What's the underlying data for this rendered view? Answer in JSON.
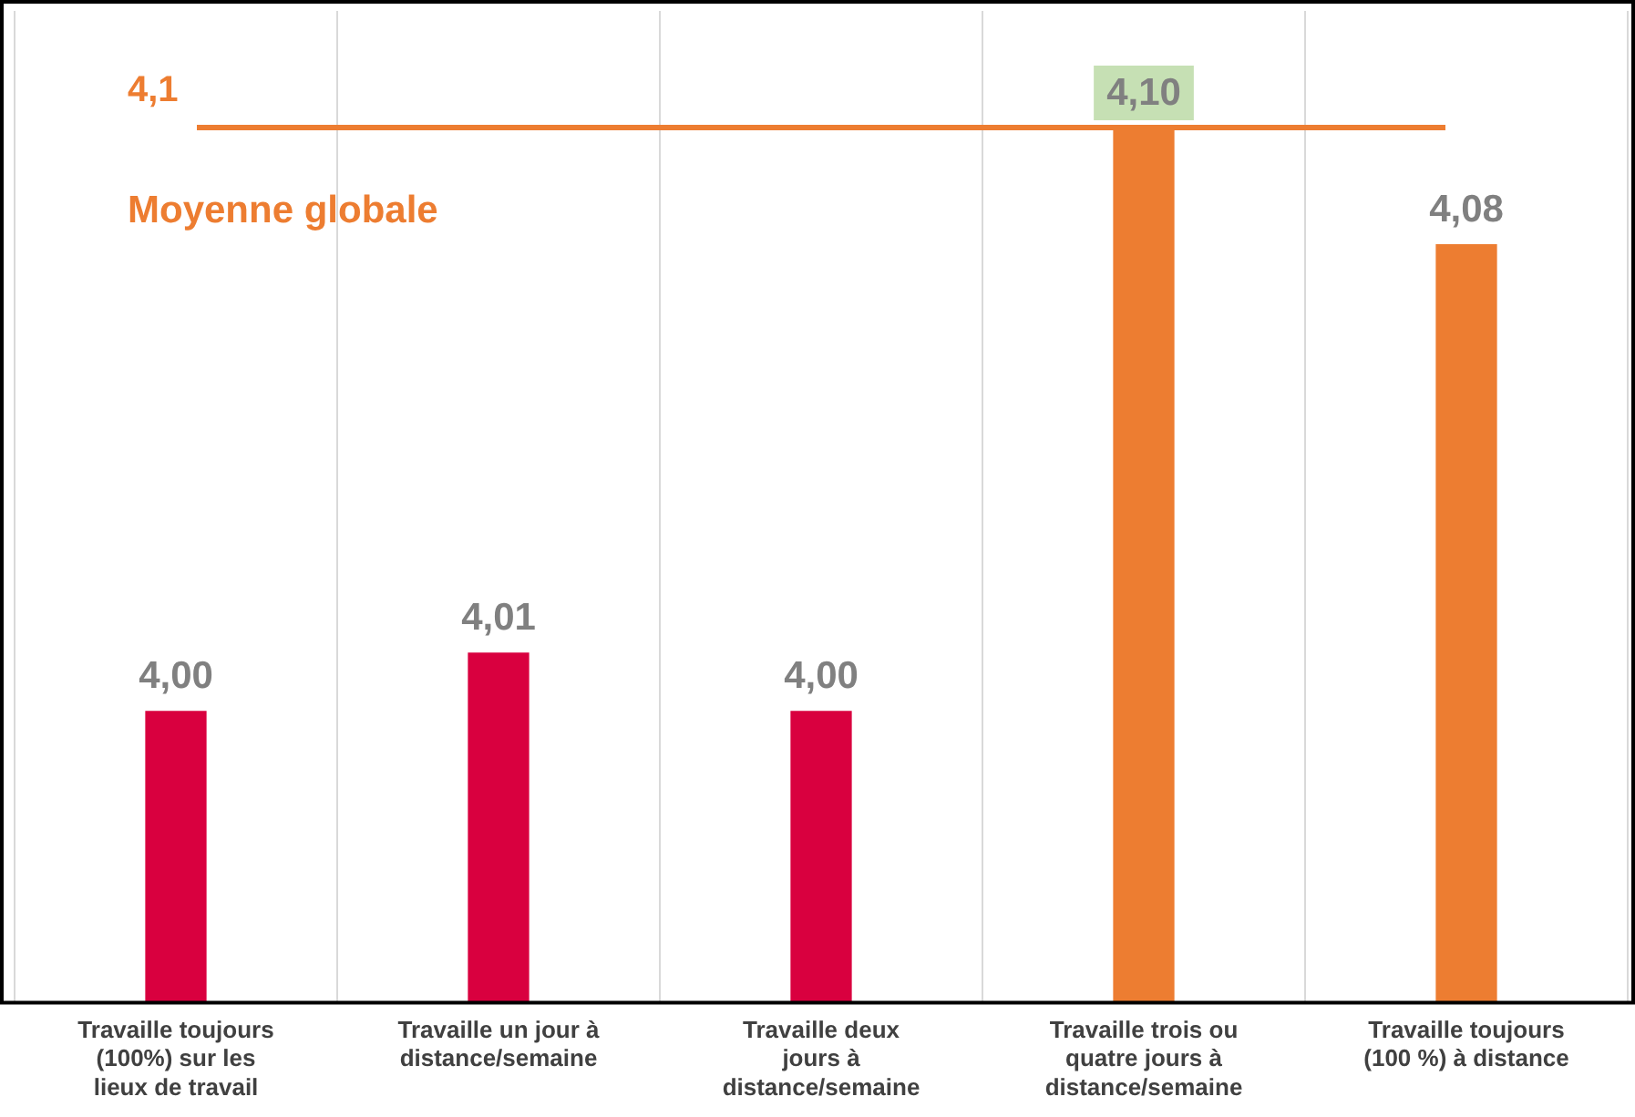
{
  "chart_data": {
    "type": "bar",
    "categories": [
      "Travaille toujours (100%) sur les lieux de travail",
      "Travaille un jour à distance/semaine",
      "Travaille deux jours à distance/semaine",
      "Travaille trois ou quatre jours à distance/semaine",
      "Travaille toujours (100 %) à distance"
    ],
    "values": [
      4.0,
      4.01,
      4.0,
      4.1,
      4.08
    ],
    "colors": [
      "#d9003f",
      "#d9003f",
      "#d9003f",
      "#ed7d31",
      "#ed7d31"
    ],
    "value_labels": [
      "4,00",
      "4,01",
      "4,00",
      "4,10",
      "4,08"
    ],
    "ylim": [
      3.95,
      4.12
    ],
    "tick_labels": "x",
    "grid": "x",
    "ref_lines": [
      {
        "axis": "y",
        "value": 4.1,
        "label": "4,1",
        "color": "#ed7d31"
      }
    ],
    "annotations": [
      "Moyenne globale"
    ]
  }
}
